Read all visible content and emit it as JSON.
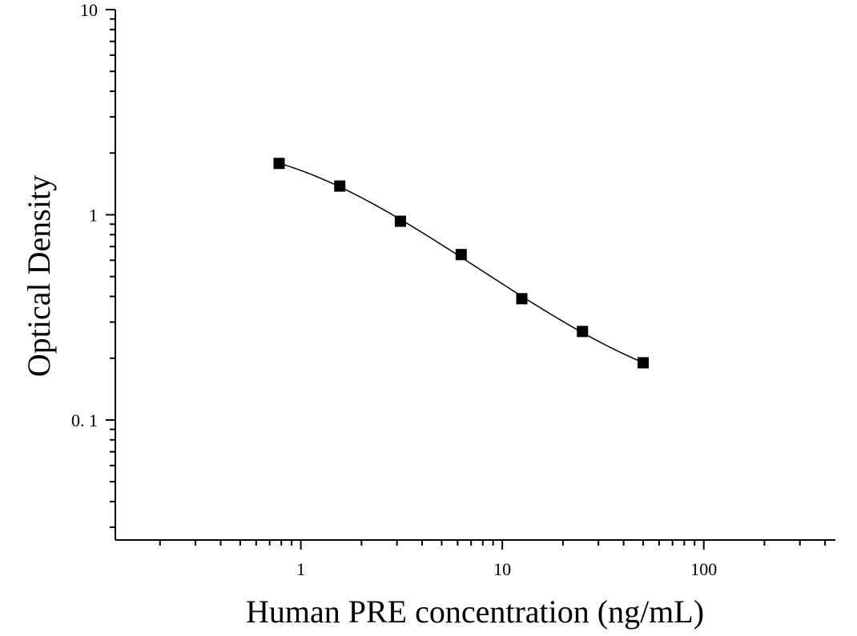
{
  "chart_data": {
    "type": "scatter",
    "title": "",
    "xlabel": "Human PRE concentration (ng/mL)",
    "ylabel": "Optical Density",
    "x_scale": "log",
    "y_scale": "log",
    "xlim": [
      0.12,
      450
    ],
    "ylim": [
      0.026,
      10
    ],
    "x_tick_labels": [
      {
        "value": 1,
        "label": "1"
      },
      {
        "value": 10,
        "label": "10"
      },
      {
        "value": 100,
        "label": "100"
      }
    ],
    "y_tick_labels": [
      {
        "value": 0.1,
        "label": "0. 1"
      },
      {
        "value": 1,
        "label": "1"
      },
      {
        "value": 10,
        "label": "10"
      }
    ],
    "grid": false,
    "legend": "none",
    "series": [
      {
        "marker": "square",
        "color": "#000000",
        "fit": "smooth-curve",
        "points": [
          {
            "x": 0.78,
            "y": 1.78
          },
          {
            "x": 1.56,
            "y": 1.38
          },
          {
            "x": 3.12,
            "y": 0.93
          },
          {
            "x": 6.25,
            "y": 0.64
          },
          {
            "x": 12.5,
            "y": 0.39
          },
          {
            "x": 25,
            "y": 0.27
          },
          {
            "x": 50,
            "y": 0.19
          }
        ]
      }
    ]
  }
}
